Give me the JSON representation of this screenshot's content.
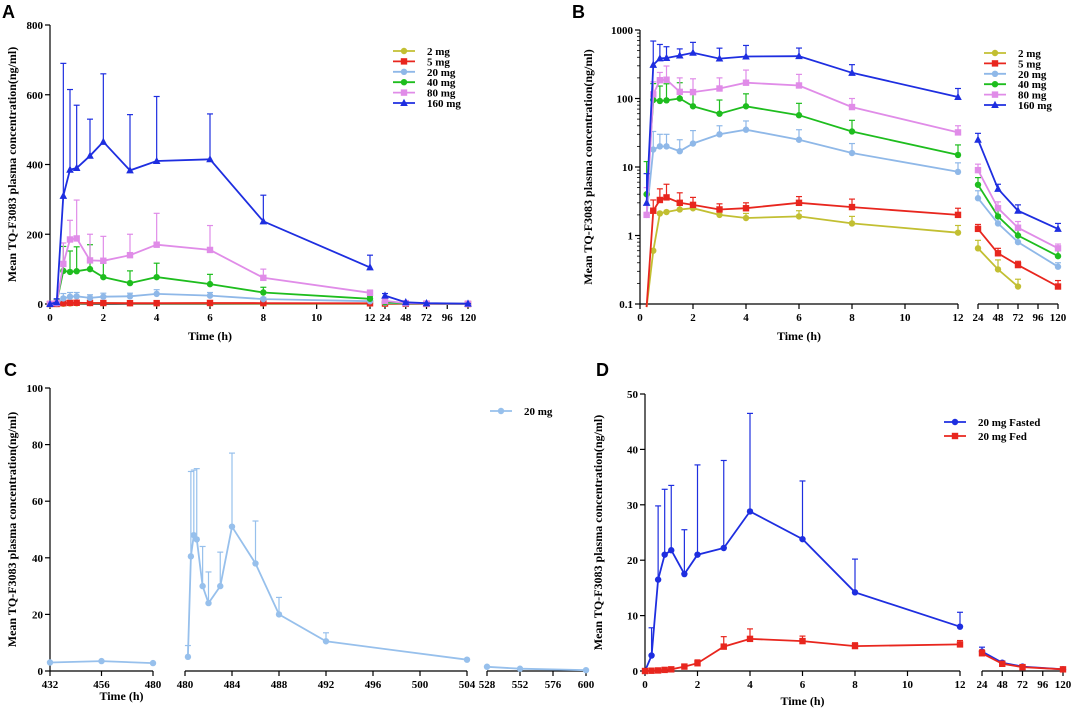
{
  "colors": {
    "2 mg": "#c2bf32",
    "5 mg": "#e8261e",
    "20 mg": "#8fb8e8",
    "40 mg": "#1ebd1e",
    "80 mg": "#e08ce8",
    "160 mg": "#1e2ee0",
    "20 mg Fasted": "#1e2ee0",
    "20 mg Fed": "#e8261e",
    "C 20 mg": "#97c0ec"
  },
  "chart_data": [
    {
      "panel": "A",
      "type": "line",
      "xlabel": "Time (h)",
      "ylabel": "Mean TQ-F3083 plasma concentration(ng/ml)",
      "yscale": "linear",
      "ylim": [
        0,
        800
      ],
      "yticks": [
        "0",
        "200",
        "400",
        "600",
        "800"
      ],
      "xticks_left": [
        "0",
        "2",
        "4",
        "6",
        "8",
        "10",
        "12"
      ],
      "xticks_right": [
        "24",
        "48",
        "72",
        "96",
        "120"
      ],
      "legend_position": "top-right",
      "series": [
        {
          "name": "2 mg",
          "marker": "circle",
          "x": [
            0,
            0.25,
            0.5,
            0.75,
            1,
            1.5,
            2,
            3,
            4,
            6,
            8,
            12,
            24,
            48,
            72,
            120
          ],
          "y": [
            0,
            0.1,
            0.6,
            1.5,
            2.1,
            2.4,
            2.5,
            2.1,
            1.8,
            1.9,
            1.5,
            1.1,
            0.6,
            0.3,
            0.2,
            0
          ],
          "err": []
        },
        {
          "name": "5 mg",
          "marker": "square",
          "x": [
            0,
            0.25,
            0.5,
            0.75,
            1,
            1.5,
            2,
            3,
            4,
            6,
            8,
            12,
            24,
            48,
            72,
            120
          ],
          "y": [
            0,
            0.1,
            2.3,
            3.2,
            3.5,
            3.0,
            2.8,
            2.4,
            2.5,
            3.0,
            2.6,
            2.0,
            1.3,
            0.5,
            0.3,
            0.1
          ],
          "err": []
        },
        {
          "name": "20 mg",
          "marker": "circle",
          "x": [
            0,
            0.25,
            0.5,
            0.75,
            1,
            1.5,
            2,
            3,
            4,
            6,
            8,
            12,
            24,
            48,
            72,
            120
          ],
          "y": [
            0,
            2,
            16,
            21,
            22,
            17.5,
            21,
            22,
            29,
            24,
            14,
            8,
            3.5,
            1.2,
            0.8,
            0.3
          ],
          "err": [
            0,
            3,
            14,
            12,
            11,
            9,
            10,
            9,
            12,
            9,
            5,
            3,
            1,
            0.4,
            0.3,
            0.1
          ]
        },
        {
          "name": "40 mg",
          "marker": "circle",
          "x": [
            0,
            0.25,
            0.5,
            0.75,
            1,
            1.5,
            2,
            3,
            4,
            6,
            8,
            12,
            24,
            48,
            72,
            120
          ],
          "y": [
            0,
            5,
            95,
            92,
            94,
            100,
            77,
            60,
            77,
            57,
            33,
            15,
            5,
            2,
            1,
            0.5
          ],
          "err": [
            0,
            8,
            70,
            60,
            70,
            70,
            40,
            35,
            40,
            28,
            15,
            6,
            2,
            0.8,
            0.5,
            0.2
          ]
        },
        {
          "name": "80 mg",
          "marker": "square",
          "x": [
            0,
            0.25,
            0.5,
            0.75,
            1,
            1.5,
            2,
            3,
            4,
            6,
            8,
            12,
            24,
            48,
            72,
            120
          ],
          "y": [
            0,
            3,
            115,
            185,
            188,
            125,
            124,
            140,
            170,
            155,
            75,
            32,
            9,
            2.5,
            1.2,
            0.6
          ],
          "err": [
            0,
            5,
            60,
            55,
            110,
            75,
            70,
            60,
            90,
            70,
            25,
            8,
            2,
            0.8,
            0.4,
            0.2
          ]
        },
        {
          "name": "160 mg",
          "marker": "triangle",
          "x": [
            0,
            0.25,
            0.5,
            0.75,
            1,
            1.5,
            2,
            3,
            4,
            6,
            8,
            12,
            24,
            48,
            72,
            120
          ],
          "y": [
            0,
            5,
            310,
            385,
            390,
            425,
            465,
            383,
            410,
            415,
            237,
            105,
            24,
            5,
            2.2,
            1.2
          ],
          "err": [
            0,
            10,
            380,
            230,
            180,
            105,
            195,
            160,
            185,
            130,
            75,
            35,
            6,
            1,
            0.5,
            0.3
          ]
        }
      ]
    },
    {
      "panel": "B",
      "type": "line",
      "xlabel": "Time (h)",
      "ylabel": "Mean TQ-F3083 plasma concentration(ng/ml)",
      "yscale": "log",
      "ylim": [
        0.1,
        1000
      ],
      "yticks": [
        "0.1",
        "1",
        "10",
        "100",
        "1000"
      ],
      "xticks_left": [
        "0",
        "2",
        "4",
        "6",
        "8",
        "10",
        "12"
      ],
      "xticks_right": [
        "24",
        "48",
        "72",
        "96",
        "120"
      ],
      "legend_position": "top-right",
      "series": [
        {
          "name": "2 mg",
          "marker": "circle",
          "x": [
            0.25,
            0.5,
            0.75,
            1,
            1.5,
            2,
            3,
            4,
            6,
            8,
            12,
            24,
            48,
            72
          ],
          "y": [
            0.09,
            0.6,
            2.1,
            2.2,
            2.4,
            2.5,
            2.0,
            1.8,
            1.9,
            1.5,
            1.1,
            0.65,
            0.32,
            0.18
          ],
          "err": [
            0,
            0,
            0,
            0,
            0.4,
            0.4,
            0.3,
            0.3,
            0.4,
            0.4,
            0.3,
            0.2,
            0.12,
            0.05
          ]
        },
        {
          "name": "5 mg",
          "marker": "square",
          "x": [
            0.25,
            0.5,
            0.75,
            1,
            1.5,
            2,
            3,
            4,
            6,
            8,
            12,
            24,
            48,
            72,
            120
          ],
          "y": [
            0.09,
            2.3,
            3.3,
            3.6,
            3.0,
            2.8,
            2.4,
            2.5,
            3.0,
            2.6,
            2.0,
            1.25,
            0.55,
            0.37,
            0.18
          ],
          "err": [
            0,
            1,
            1.5,
            2,
            1.2,
            0.8,
            0.5,
            0.5,
            0.7,
            0.8,
            0.5,
            0.2,
            0.1,
            0.05,
            0.04
          ]
        },
        {
          "name": "20 mg",
          "marker": "circle",
          "x": [
            0.25,
            0.5,
            0.75,
            1,
            1.5,
            2,
            3,
            4,
            6,
            8,
            12,
            24,
            48,
            72,
            120
          ],
          "y": [
            2,
            18,
            20,
            20,
            17,
            22,
            30,
            35,
            25,
            16,
            8.5,
            3.5,
            1.5,
            0.8,
            0.35
          ],
          "err": [
            0,
            15,
            10,
            10,
            8,
            12,
            10,
            12,
            10,
            6,
            3,
            1,
            0.5,
            0.2,
            0.05
          ]
        },
        {
          "name": "40 mg",
          "marker": "circle",
          "x": [
            0.25,
            0.5,
            0.75,
            1,
            1.5,
            2,
            3,
            4,
            6,
            8,
            12,
            24,
            48,
            72,
            120
          ],
          "y": [
            4,
            95,
            92,
            94,
            100,
            77,
            60,
            77,
            57,
            33,
            15,
            5.5,
            1.9,
            1.0,
            0.5
          ],
          "err": [
            8,
            70,
            60,
            70,
            70,
            40,
            35,
            40,
            28,
            15,
            6,
            1.5,
            0.5,
            0.2,
            0.1
          ]
        },
        {
          "name": "80 mg",
          "marker": "square",
          "x": [
            0.25,
            0.5,
            0.75,
            1,
            1.5,
            2,
            3,
            4,
            6,
            8,
            12,
            24,
            48,
            72,
            120
          ],
          "y": [
            2,
            115,
            185,
            188,
            125,
            124,
            140,
            170,
            155,
            75,
            32,
            9,
            2.5,
            1.3,
            0.65
          ],
          "err": [
            3,
            60,
            55,
            110,
            75,
            70,
            60,
            90,
            70,
            25,
            8,
            2,
            0.6,
            0.3,
            0.1
          ]
        },
        {
          "name": "160 mg",
          "marker": "triangle",
          "x": [
            0.25,
            0.5,
            0.75,
            1,
            1.5,
            2,
            3,
            4,
            6,
            8,
            12,
            24,
            48,
            72,
            120
          ],
          "y": [
            3,
            310,
            385,
            390,
            425,
            465,
            383,
            410,
            415,
            237,
            105,
            25,
            4.8,
            2.3,
            1.25
          ],
          "err": [
            5,
            380,
            230,
            180,
            105,
            195,
            160,
            185,
            130,
            75,
            35,
            6,
            0.8,
            0.5,
            0.25
          ]
        }
      ]
    },
    {
      "panel": "C",
      "type": "line",
      "xlabel": "Time (h)",
      "ylabel": "Mean TQ-F3083 plasma concentration(ng/ml)",
      "yscale": "linear",
      "ylim": [
        0,
        100
      ],
      "yticks": [
        "0",
        "20",
        "40",
        "60",
        "80",
        "100"
      ],
      "xticks_seg1": [
        "432",
        "456",
        "480"
      ],
      "xticks_seg2": [
        "480",
        "484",
        "488",
        "492",
        "496",
        "500",
        "504"
      ],
      "xticks_seg3": [
        "528",
        "552",
        "576",
        "600"
      ],
      "legend_position": "top-right",
      "series": [
        {
          "name": "20 mg",
          "marker": "circle",
          "x": [
            432,
            456,
            480,
            480.25,
            480.5,
            480.75,
            481,
            481.5,
            482,
            483,
            484,
            486,
            488,
            492,
            504,
            528,
            552,
            600
          ],
          "y": [
            3,
            3.5,
            2.8,
            5,
            40.5,
            48,
            46.5,
            30,
            24,
            30,
            51,
            38,
            20,
            10.5,
            4,
            1.5,
            0.8,
            0.3
          ],
          "err": [
            0,
            0,
            0,
            4,
            30,
            23,
            25,
            14,
            11,
            12,
            26,
            15,
            6,
            3,
            0,
            0,
            0,
            0
          ]
        }
      ]
    },
    {
      "panel": "D",
      "type": "line",
      "xlabel": "Time (h)",
      "ylabel": "Mean TQ-F3083 plasma concentration(ng/ml)",
      "yscale": "linear",
      "ylim": [
        0,
        50
      ],
      "yticks": [
        "0",
        "10",
        "20",
        "30",
        "40",
        "50"
      ],
      "xticks_left": [
        "0",
        "2",
        "4",
        "6",
        "8",
        "10",
        "12"
      ],
      "xticks_right": [
        "24",
        "48",
        "72",
        "96",
        "120"
      ],
      "legend_position": "top-right",
      "series": [
        {
          "name": "20 mg Fasted",
          "marker": "circle",
          "x": [
            0,
            0.25,
            0.5,
            0.75,
            1,
            1.5,
            2,
            3,
            4,
            6,
            8,
            12,
            24,
            48,
            72,
            120
          ],
          "y": [
            0,
            2.8,
            16.5,
            21,
            21.8,
            17.5,
            21,
            22.2,
            28.8,
            23.8,
            14.2,
            8,
            3.5,
            1.5,
            0.8,
            0.3
          ],
          "err": [
            0,
            5,
            13.3,
            11.8,
            11.7,
            8,
            16.2,
            15.8,
            17.7,
            10.5,
            6,
            2.6,
            0.8,
            0.3,
            0.2,
            0.1
          ]
        },
        {
          "name": "20 mg Fed",
          "marker": "square",
          "x": [
            0,
            0.25,
            0.5,
            0.75,
            1,
            1.5,
            2,
            3,
            4,
            6,
            8,
            12,
            24,
            48,
            72,
            120
          ],
          "y": [
            0,
            0.05,
            0.1,
            0.2,
            0.3,
            0.8,
            1.4,
            4.4,
            5.8,
            5.4,
            4.5,
            4.8,
            3.2,
            1.3,
            0.7,
            0.3
          ],
          "err": [
            0,
            0,
            0,
            0,
            0,
            0.3,
            0.6,
            1.8,
            1.8,
            0.9,
            0.6,
            0.7,
            0.6,
            0.3,
            0.1,
            0.05
          ]
        }
      ]
    }
  ]
}
